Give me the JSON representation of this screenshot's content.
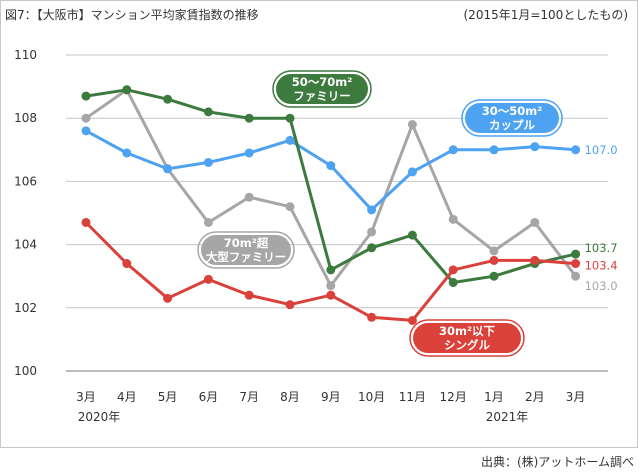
{
  "header": {
    "title": "図7：【大阪市】マンション平均家賃指数の推移",
    "note": "(2015年1月=100としたもの)"
  },
  "footer": {
    "source": "出典：(株)アットホーム調べ"
  },
  "chart_data": {
    "type": "line",
    "title": "図7：【大阪市】マンション平均家賃指数の推移",
    "categories": [
      "3月",
      "4月",
      "5月",
      "6月",
      "7月",
      "8月",
      "9月",
      "10月",
      "11月",
      "12月",
      "1月",
      "2月",
      "3月"
    ],
    "year_labels": [
      {
        "index": 0,
        "label": "2020年"
      },
      {
        "index": 10,
        "label": "2021年"
      }
    ],
    "ylim": [
      100,
      110
    ],
    "yticks": [
      100,
      102,
      104,
      106,
      108,
      110
    ],
    "grid": true,
    "series": [
      {
        "name": "30〜50m²カップル",
        "label_lines": [
          "30〜50m²",
          "カップル"
        ],
        "color": "#4ea2f2",
        "values": [
          107.6,
          106.9,
          106.4,
          106.6,
          106.9,
          107.3,
          106.5,
          105.1,
          106.3,
          107.0,
          107.0,
          107.1,
          107.0
        ],
        "end_label": "107.0"
      },
      {
        "name": "50〜70m²ファミリー",
        "label_lines": [
          "50〜70m²",
          "ファミリー"
        ],
        "color": "#3d7a3d",
        "values": [
          108.7,
          108.9,
          108.6,
          108.2,
          108.0,
          108.0,
          103.2,
          103.9,
          104.3,
          102.8,
          103.0,
          103.4,
          103.7
        ],
        "end_label": "103.7"
      },
      {
        "name": "70m²超大型ファミリー",
        "label_lines": [
          "70m²超",
          "大型ファミリー"
        ],
        "color": "#a6a6a6",
        "values": [
          108.0,
          108.9,
          106.4,
          104.7,
          105.5,
          105.2,
          102.7,
          104.4,
          107.8,
          104.8,
          103.8,
          104.7,
          103.0
        ],
        "end_label": "103.0"
      },
      {
        "name": "30m²以下シングル",
        "label_lines": [
          "30m²以下",
          "シングル"
        ],
        "color": "#d9413a",
        "values": [
          104.7,
          103.4,
          102.3,
          102.9,
          102.4,
          102.1,
          102.4,
          101.7,
          101.6,
          103.2,
          103.5,
          103.5,
          103.4
        ],
        "end_label": "103.4"
      }
    ]
  }
}
